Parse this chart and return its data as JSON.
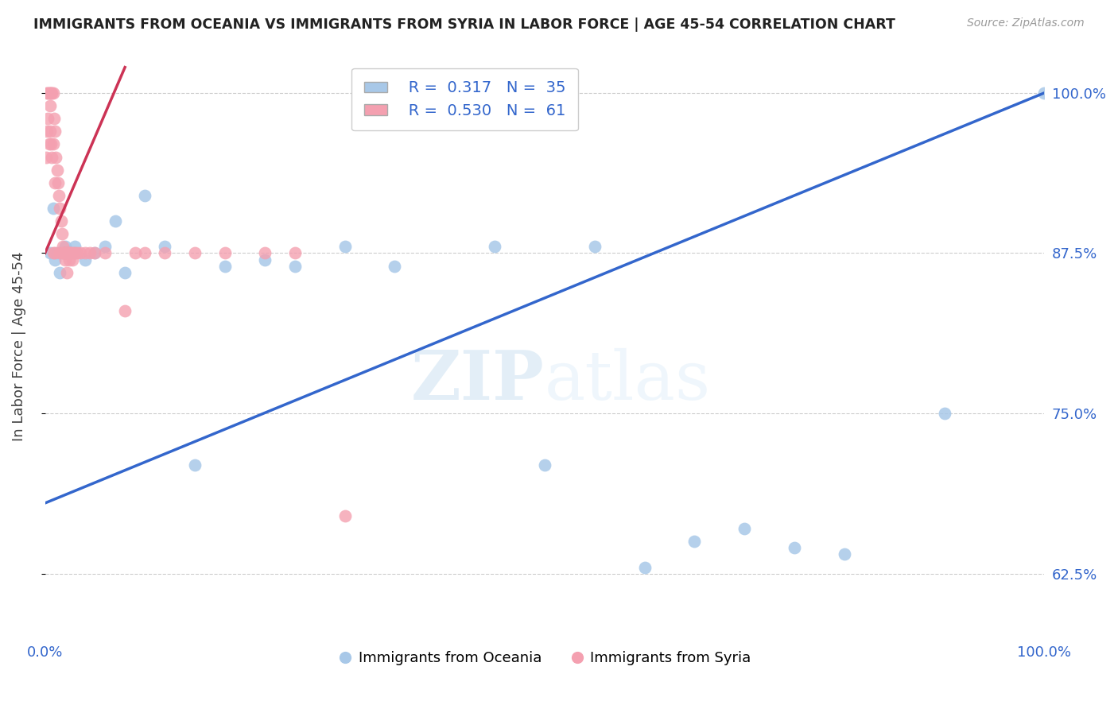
{
  "title": "IMMIGRANTS FROM OCEANIA VS IMMIGRANTS FROM SYRIA IN LABOR FORCE | AGE 45-54 CORRELATION CHART",
  "source": "Source: ZipAtlas.com",
  "ylabel": "In Labor Force | Age 45-54",
  "yticks": [
    0.625,
    0.75,
    0.875,
    1.0
  ],
  "ytick_labels": [
    "62.5%",
    "75.0%",
    "87.5%",
    "100.0%"
  ],
  "xlim": [
    0.0,
    1.0
  ],
  "ylim": [
    0.575,
    1.03
  ],
  "blue_R": "0.317",
  "blue_N": "35",
  "pink_R": "0.530",
  "pink_N": "61",
  "blue_color": "#a8c8e8",
  "pink_color": "#f4a0b0",
  "blue_line_color": "#3366cc",
  "pink_line_color": "#cc3355",
  "legend_label_blue": "Immigrants from Oceania",
  "legend_label_pink": "Immigrants from Syria",
  "blue_line_x0": 0.0,
  "blue_line_y0": 0.68,
  "blue_line_x1": 1.0,
  "blue_line_y1": 1.0,
  "pink_line_x0": 0.0,
  "pink_line_y0": 0.875,
  "pink_line_x1": 0.08,
  "pink_line_y1": 1.02,
  "blue_scatter_x": [
    0.005,
    0.008,
    0.01,
    0.012,
    0.015,
    0.018,
    0.02,
    0.025,
    0.03,
    0.04,
    0.05,
    0.06,
    0.07,
    0.08,
    0.1,
    0.12,
    0.15,
    0.18,
    0.22,
    0.25,
    0.3,
    0.35,
    0.45,
    0.5,
    0.55,
    0.6,
    0.65,
    0.7,
    0.75,
    0.8,
    0.9,
    1.0,
    0.02,
    0.025,
    0.03
  ],
  "blue_scatter_y": [
    0.875,
    0.91,
    0.87,
    0.875,
    0.86,
    0.875,
    0.88,
    0.875,
    0.88,
    0.87,
    0.875,
    0.88,
    0.9,
    0.86,
    0.92,
    0.88,
    0.71,
    0.865,
    0.87,
    0.865,
    0.88,
    0.865,
    0.88,
    0.71,
    0.88,
    0.63,
    0.65,
    0.66,
    0.645,
    0.64,
    0.75,
    1.0,
    0.875,
    0.875,
    0.875
  ],
  "pink_scatter_x": [
    0.001,
    0.002,
    0.002,
    0.003,
    0.003,
    0.004,
    0.004,
    0.005,
    0.005,
    0.005,
    0.006,
    0.006,
    0.007,
    0.007,
    0.008,
    0.008,
    0.009,
    0.01,
    0.01,
    0.011,
    0.012,
    0.013,
    0.014,
    0.015,
    0.015,
    0.016,
    0.017,
    0.018,
    0.019,
    0.02,
    0.02,
    0.021,
    0.022,
    0.022,
    0.023,
    0.024,
    0.025,
    0.025,
    0.026,
    0.027,
    0.028,
    0.03,
    0.032,
    0.035,
    0.04,
    0.045,
    0.05,
    0.06,
    0.08,
    0.09,
    0.1,
    0.12,
    0.15,
    0.18,
    0.22,
    0.25,
    0.3,
    0.008,
    0.01,
    0.018,
    0.02
  ],
  "pink_scatter_y": [
    0.95,
    1.0,
    0.97,
    1.0,
    0.98,
    1.0,
    0.96,
    1.0,
    0.99,
    0.97,
    1.0,
    0.96,
    1.0,
    0.95,
    1.0,
    0.96,
    0.98,
    0.97,
    0.93,
    0.95,
    0.94,
    0.93,
    0.92,
    0.91,
    0.875,
    0.9,
    0.89,
    0.88,
    0.875,
    0.875,
    0.87,
    0.875,
    0.86,
    0.875,
    0.875,
    0.87,
    0.875,
    0.875,
    0.875,
    0.87,
    0.875,
    0.875,
    0.875,
    0.875,
    0.875,
    0.875,
    0.875,
    0.875,
    0.83,
    0.875,
    0.875,
    0.875,
    0.875,
    0.875,
    0.875,
    0.875,
    0.67,
    0.875,
    0.875,
    0.875,
    0.875
  ]
}
